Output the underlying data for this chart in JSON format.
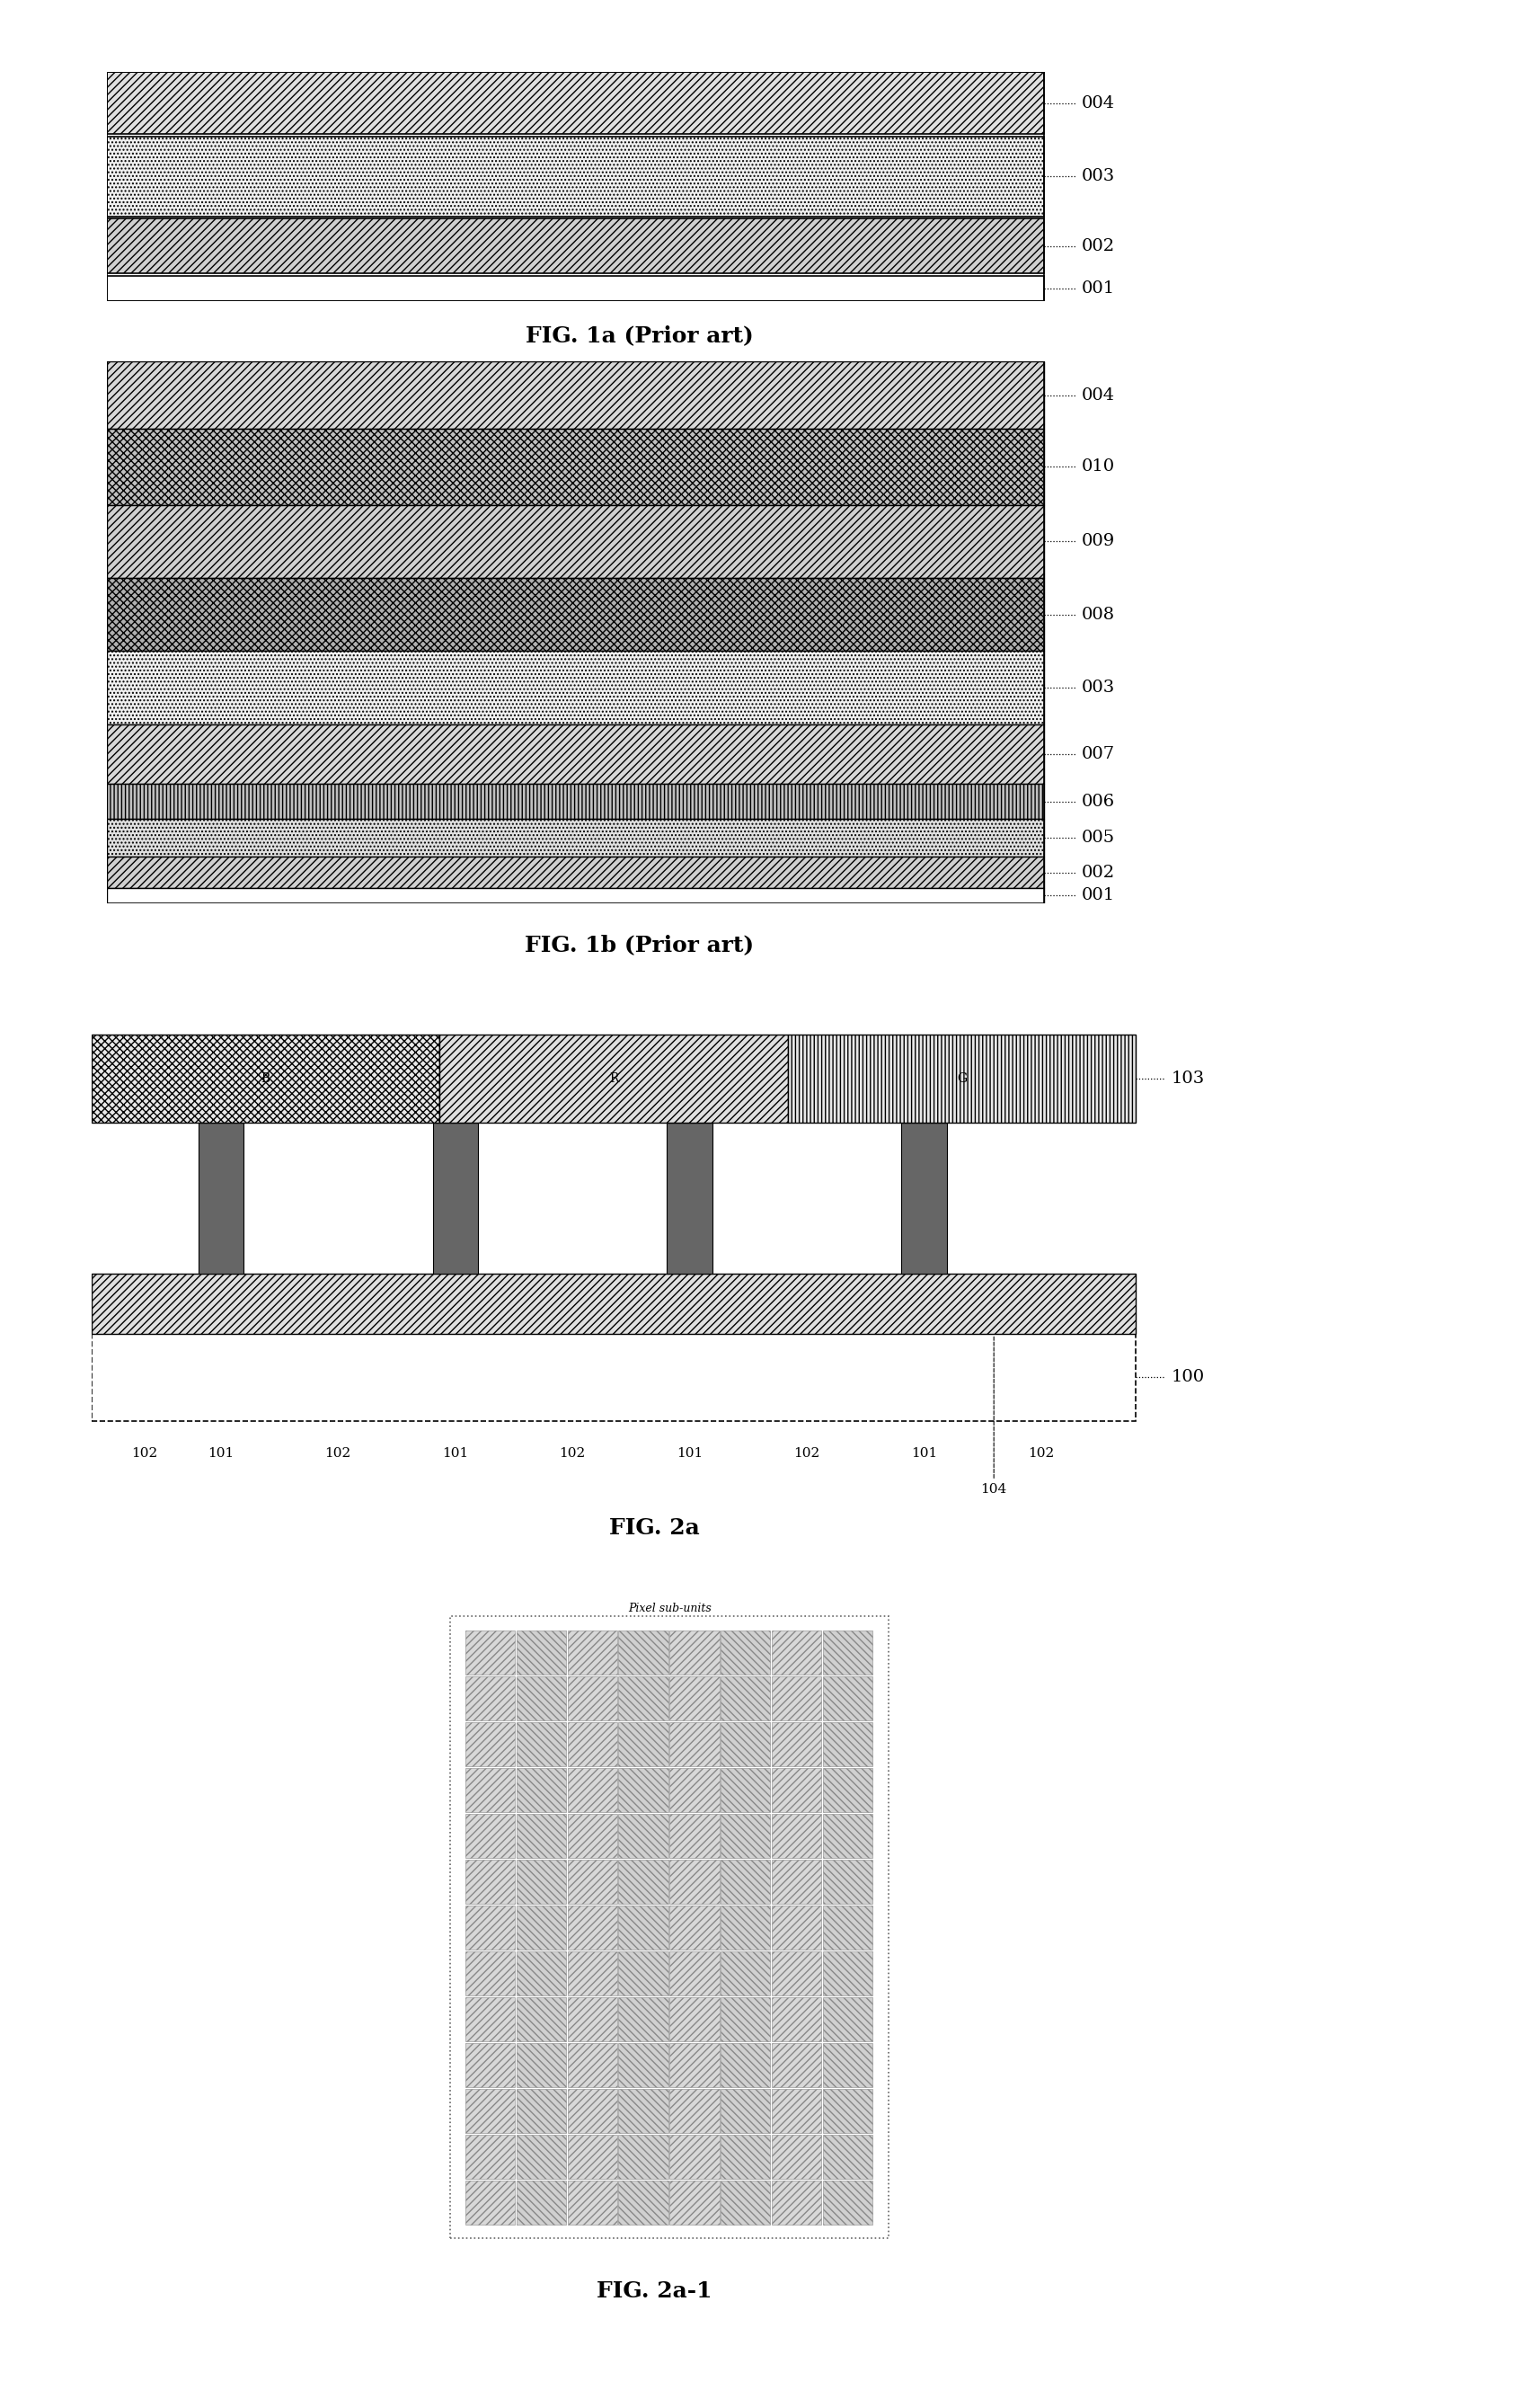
{
  "bg_color": "#ffffff",
  "fig1a_title": "FIG. 1a (Prior art)",
  "fig1b_title": "FIG. 1b (Prior art)",
  "fig2a_title": "FIG. 2a",
  "fig2a1_title": "FIG. 2a-1",
  "label_fontsize": 14,
  "title_fontsize": 18,
  "fig1a_layers": [
    {
      "label": "004",
      "yb": 0.73,
      "ht": 0.27,
      "hatch": "////",
      "face": "#e0e0e0",
      "edge": "#000000"
    },
    {
      "label": "003",
      "yb": 0.37,
      "ht": 0.35,
      "hatch": "....",
      "face": "#f0f0f0",
      "edge": "#000000"
    },
    {
      "label": "002",
      "yb": 0.12,
      "ht": 0.24,
      "hatch": "////",
      "face": "#d0d0d0",
      "edge": "#000000"
    },
    {
      "label": "001",
      "yb": 0.0,
      "ht": 0.11,
      "hatch": "",
      "face": "#ffffff",
      "edge": "#000000"
    }
  ],
  "fig1b_layers": [
    {
      "label": "004",
      "yb": 0.875,
      "ht": 0.125,
      "hatch": "////",
      "face": "#d8d8d8",
      "edge": "#000000"
    },
    {
      "label": "010",
      "yb": 0.735,
      "ht": 0.14,
      "hatch": "xxxx",
      "face": "#c0c0c0",
      "edge": "#000000"
    },
    {
      "label": "009",
      "yb": 0.6,
      "ht": 0.135,
      "hatch": "////",
      "face": "#d0d0d0",
      "edge": "#000000"
    },
    {
      "label": "008",
      "yb": 0.465,
      "ht": 0.135,
      "hatch": "xxxx",
      "face": "#b0b0b0",
      "edge": "#000000"
    },
    {
      "label": "003",
      "yb": 0.33,
      "ht": 0.135,
      "hatch": "....",
      "face": "#f0f0f0",
      "edge": "#000000"
    },
    {
      "label": "007",
      "yb": 0.22,
      "ht": 0.11,
      "hatch": "////",
      "face": "#d8d8d8",
      "edge": "#000000"
    },
    {
      "label": "006",
      "yb": 0.155,
      "ht": 0.065,
      "hatch": "||||",
      "face": "#c0c0c0",
      "edge": "#000000"
    },
    {
      "label": "005",
      "yb": 0.085,
      "ht": 0.07,
      "hatch": "....",
      "face": "#e0e0e0",
      "edge": "#000000"
    },
    {
      "label": "002",
      "yb": 0.028,
      "ht": 0.057,
      "hatch": "////",
      "face": "#d0d0d0",
      "edge": "#000000"
    },
    {
      "label": "001",
      "yb": 0.0,
      "ht": 0.028,
      "hatch": "",
      "face": "#ffffff",
      "edge": "#000000"
    }
  ]
}
